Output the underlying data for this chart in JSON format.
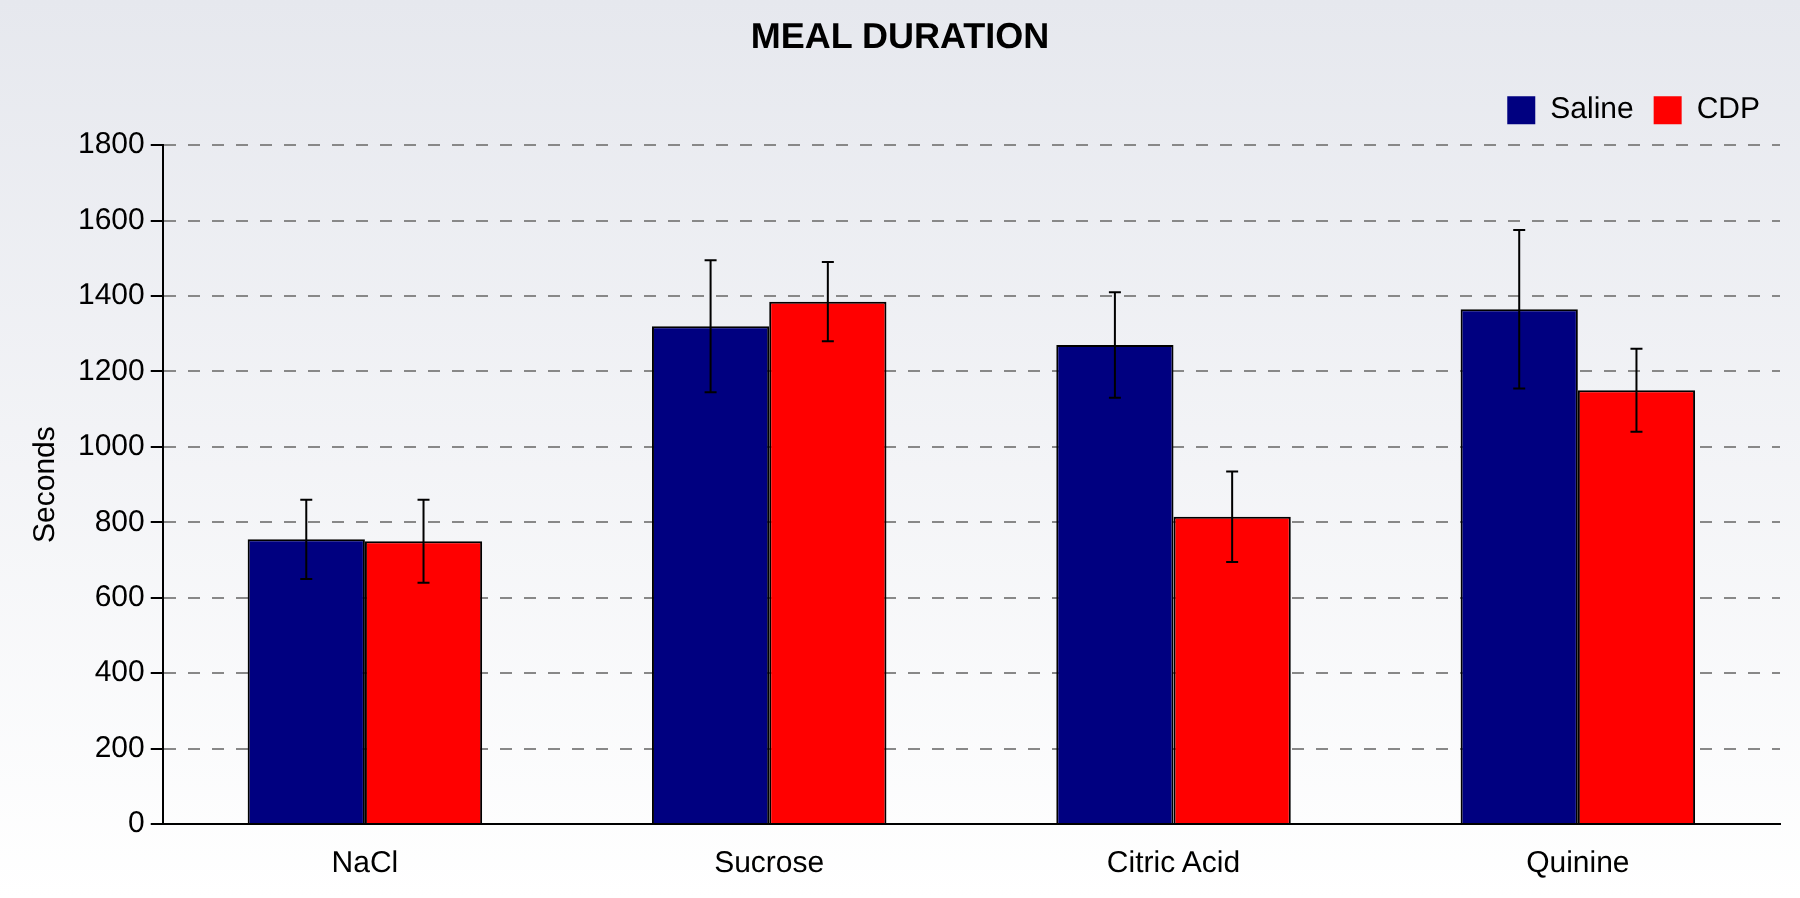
{
  "chart_data": {
    "type": "bar",
    "title": "MEAL DURATION",
    "ylabel": "Seconds",
    "categories": [
      "NaCl",
      "Sucrose",
      "Citric Acid",
      "Quinine"
    ],
    "series": [
      {
        "name": "Saline",
        "color": "#000080",
        "values": [
          755,
          1320,
          1270,
          1365
        ],
        "errors": [
          105,
          175,
          140,
          210
        ]
      },
      {
        "name": "CDP",
        "color": "#ff0000",
        "values": [
          750,
          1385,
          815,
          1150
        ],
        "errors": [
          110,
          105,
          120,
          110
        ]
      }
    ],
    "ylim": [
      0,
      1800
    ],
    "yticks": [
      0,
      200,
      400,
      600,
      800,
      1000,
      1200,
      1400,
      1600,
      1800
    ],
    "grid": "y",
    "legend": "top right"
  }
}
